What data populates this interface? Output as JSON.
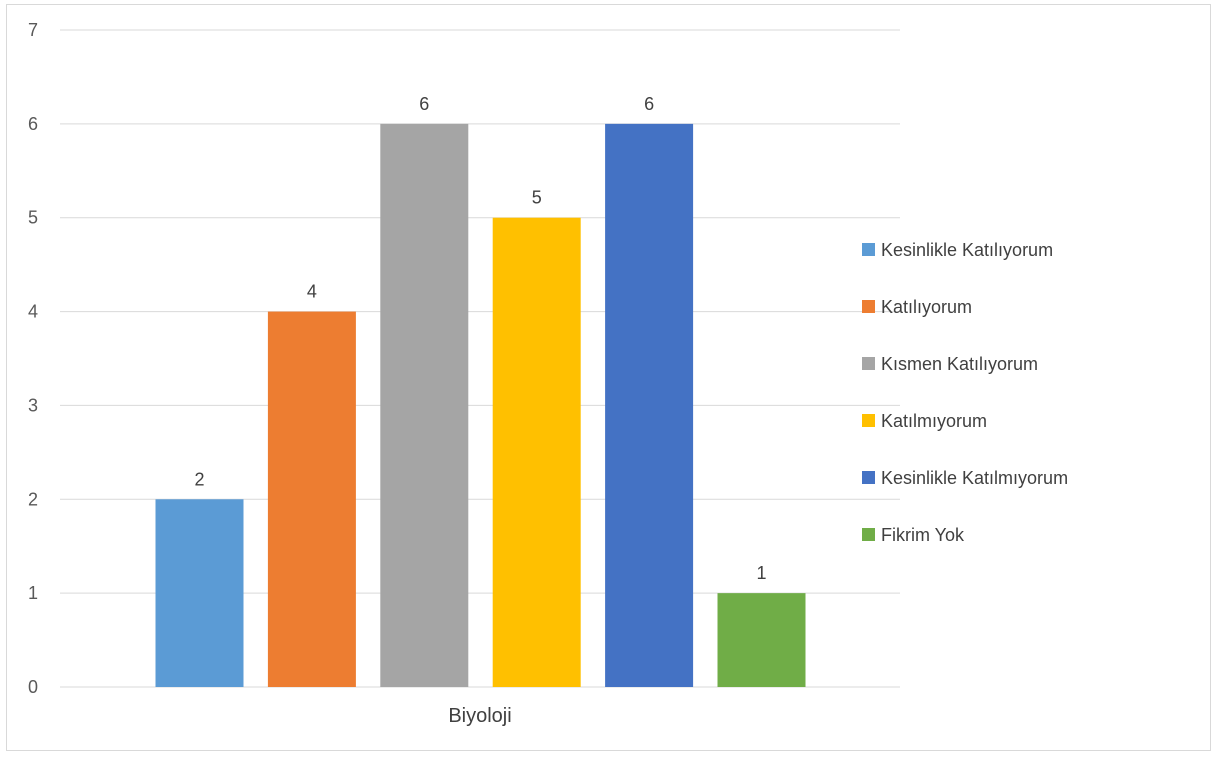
{
  "chart_data": {
    "type": "bar",
    "title": "",
    "xlabel": "",
    "ylabel": "",
    "categories": [
      "Biyoloji"
    ],
    "series": [
      {
        "name": "Kesinlikle Katılıyorum",
        "color": "#5B9BD5",
        "values": [
          2
        ]
      },
      {
        "name": "Katılıyorum",
        "color": "#ED7D31",
        "values": [
          4
        ]
      },
      {
        "name": "Kısmen Katılıyorum",
        "color": "#A5A5A5",
        "values": [
          6
        ]
      },
      {
        "name": "Katılmıyorum",
        "color": "#FFC000",
        "values": [
          5
        ]
      },
      {
        "name": "Kesinlikle Katılmıyorum",
        "color": "#4472C4",
        "values": [
          6
        ]
      },
      {
        "name": "Fikrim Yok",
        "color": "#70AD47",
        "values": [
          1
        ]
      }
    ],
    "ylim": [
      0,
      7
    ],
    "yticks": [
      "0",
      "1",
      "2",
      "3",
      "4",
      "5",
      "6",
      "7"
    ],
    "grid": true,
    "legend": "right"
  }
}
